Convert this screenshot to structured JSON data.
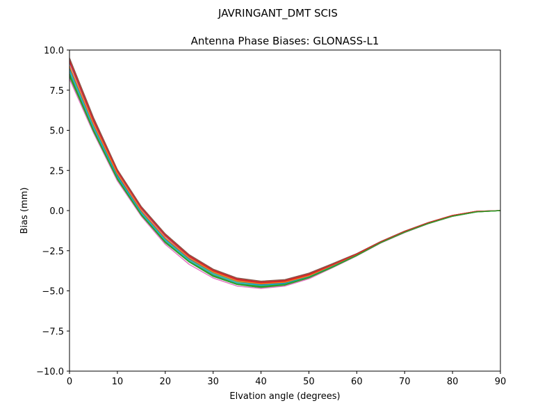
{
  "chart_data": {
    "type": "line",
    "suptitle": "JAVRINGANT_DMT  SCIS",
    "title": "Antenna Phase Biases: GLONASS-L1",
    "xlabel": "Elvation angle (degrees)",
    "ylabel": "Bias (mm)",
    "xlim": [
      0,
      90
    ],
    "ylim": [
      -10,
      10
    ],
    "xticks": [
      0,
      10,
      20,
      30,
      40,
      50,
      60,
      70,
      80,
      90
    ],
    "yticks": [
      -10.0,
      -7.5,
      -5.0,
      -2.5,
      0.0,
      2.5,
      5.0,
      7.5,
      10.0
    ],
    "ytick_labels": [
      "−10.0",
      "−7.5",
      "−5.0",
      "−2.5",
      "0.0",
      "2.5",
      "5.0",
      "7.5",
      "10.0"
    ],
    "xtick_labels": [
      "0",
      "10",
      "20",
      "30",
      "40",
      "50",
      "60",
      "70",
      "80",
      "90"
    ],
    "grid": false,
    "x": [
      0,
      5,
      10,
      15,
      20,
      25,
      30,
      35,
      40,
      45,
      50,
      55,
      60,
      65,
      70,
      75,
      80,
      85,
      90
    ],
    "series": [
      {
        "color": "#2ca02c",
        "values": [
          8.3,
          4.9,
          1.9,
          -0.3,
          -2.0,
          -3.2,
          -4.1,
          -4.6,
          -4.8,
          -4.65,
          -4.2,
          -3.5,
          -2.8,
          -2.0,
          -1.35,
          -0.8,
          -0.35,
          -0.08,
          0.0
        ]
      },
      {
        "color": "#d62728",
        "values": [
          9.4,
          5.7,
          2.5,
          0.2,
          -1.5,
          -2.8,
          -3.7,
          -4.25,
          -4.45,
          -4.35,
          -3.95,
          -3.35,
          -2.7,
          -1.95,
          -1.3,
          -0.75,
          -0.3,
          -0.05,
          0.0
        ]
      },
      {
        "color": "#9467bd",
        "values": [
          9.2,
          5.55,
          2.4,
          0.1,
          -1.6,
          -2.9,
          -3.8,
          -4.35,
          -4.55,
          -4.45,
          -4.05,
          -3.4,
          -2.72,
          -1.97,
          -1.32,
          -0.77,
          -0.32,
          -0.06,
          0.0
        ]
      },
      {
        "color": "#8c564b",
        "values": [
          9.5,
          5.8,
          2.55,
          0.25,
          -1.45,
          -2.75,
          -3.65,
          -4.2,
          -4.4,
          -4.3,
          -3.9,
          -3.3,
          -2.68,
          -1.93,
          -1.28,
          -0.74,
          -0.3,
          -0.05,
          0.0
        ]
      },
      {
        "color": "#e377c2",
        "values": [
          8.2,
          4.85,
          1.85,
          -0.35,
          -2.1,
          -3.35,
          -4.2,
          -4.7,
          -4.85,
          -4.7,
          -4.25,
          -3.55,
          -2.82,
          -2.02,
          -1.37,
          -0.81,
          -0.36,
          -0.08,
          0.0
        ]
      },
      {
        "color": "#7f7f7f",
        "values": [
          8.6,
          5.1,
          2.05,
          -0.2,
          -1.9,
          -3.15,
          -4.0,
          -4.55,
          -4.7,
          -4.6,
          -4.15,
          -3.48,
          -2.77,
          -1.99,
          -1.34,
          -0.79,
          -0.34,
          -0.07,
          0.0
        ]
      },
      {
        "color": "#bcbd22",
        "values": [
          8.8,
          5.25,
          2.15,
          -0.1,
          -1.8,
          -3.05,
          -3.9,
          -4.45,
          -4.62,
          -4.52,
          -4.1,
          -3.44,
          -2.75,
          -1.98,
          -1.33,
          -0.78,
          -0.33,
          -0.06,
          0.0
        ]
      },
      {
        "color": "#17becf",
        "values": [
          8.7,
          5.2,
          2.1,
          -0.15,
          -1.85,
          -3.1,
          -3.95,
          -4.5,
          -4.65,
          -4.55,
          -4.12,
          -3.46,
          -2.76,
          -1.98,
          -1.33,
          -0.78,
          -0.33,
          -0.06,
          0.0
        ]
      },
      {
        "color": "#1f77b4",
        "values": [
          8.9,
          5.35,
          2.2,
          -0.05,
          -1.75,
          -3.0,
          -3.85,
          -4.4,
          -4.6,
          -4.5,
          -4.08,
          -3.42,
          -2.74,
          -1.97,
          -1.32,
          -0.77,
          -0.32,
          -0.06,
          0.0
        ]
      },
      {
        "color": "#ff7f0e",
        "values": [
          9.0,
          5.4,
          2.3,
          0.0,
          -1.7,
          -2.95,
          -3.82,
          -4.38,
          -4.56,
          -4.46,
          -4.06,
          -3.4,
          -2.72,
          -1.96,
          -1.31,
          -0.76,
          -0.31,
          -0.06,
          0.0
        ]
      },
      {
        "color": "#2ca02c",
        "values": [
          8.5,
          5.0,
          2.0,
          -0.25,
          -1.95,
          -3.18,
          -4.05,
          -4.58,
          -4.72,
          -4.6,
          -4.16,
          -3.5,
          -2.79,
          -2.0,
          -1.35,
          -0.8,
          -0.35,
          -0.08,
          0.0
        ]
      },
      {
        "color": "#d62728",
        "values": [
          9.3,
          5.6,
          2.45,
          0.15,
          -1.55,
          -2.85,
          -3.75,
          -4.3,
          -4.5,
          -4.4,
          -4.0,
          -3.37,
          -2.71,
          -1.95,
          -1.3,
          -0.75,
          -0.3,
          -0.05,
          0.0
        ]
      },
      {
        "color": "#2ca02c",
        "values": [
          8.4,
          4.95,
          1.95,
          -0.28,
          -1.98,
          -3.2,
          -4.08,
          -4.6,
          -4.75,
          -4.62,
          -4.18,
          -3.52,
          -2.8,
          -2.0,
          -1.35,
          -0.8,
          -0.35,
          -0.08,
          0.0
        ]
      }
    ]
  }
}
